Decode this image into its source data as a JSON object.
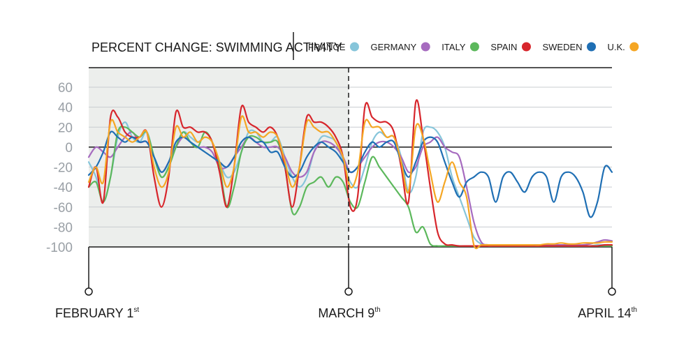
{
  "chart_data": {
    "type": "line",
    "title": "PERCENT CHANGE: SWIMMING ACTIVITY",
    "x_labels": [
      {
        "label": "FEBRUARY 1",
        "sup": "st"
      },
      {
        "label": "MARCH 9",
        "sup": "th"
      },
      {
        "label": "APRIL 14",
        "sup": "th"
      }
    ],
    "ylim": [
      -100,
      60
    ],
    "yticks": [
      "60",
      "40",
      "20",
      "0",
      "-20",
      "-40",
      "-60",
      "-80",
      "-100"
    ],
    "shaded_region": "February 1 – March 9",
    "legend_position": "top",
    "series": [
      {
        "name": "FRANCE",
        "color": "#86c5da",
        "values": [
          -15,
          -30,
          -55,
          -30,
          10,
          25,
          10,
          5,
          15,
          -10,
          -30,
          -20,
          0,
          15,
          10,
          5,
          10,
          5,
          -15,
          -30,
          -25,
          -5,
          15,
          15,
          5,
          5,
          10,
          -10,
          -30,
          -40,
          -30,
          -5,
          10,
          10,
          5,
          -15,
          -35,
          -40,
          -20,
          5,
          15,
          10,
          10,
          -10,
          -45,
          -30,
          15,
          20,
          15,
          0,
          -30,
          -50,
          -70,
          -90,
          -97,
          -99,
          -99,
          -99,
          -99,
          -99,
          -99,
          -99,
          -99,
          -99,
          -99,
          -99,
          -99,
          -99,
          -99,
          -99,
          -98,
          -98,
          -98
        ]
      },
      {
        "name": "GERMANY",
        "color": "#a66bbf",
        "values": [
          -10,
          0,
          -5,
          -10,
          0,
          10,
          15,
          5,
          5,
          -10,
          -25,
          -15,
          0,
          10,
          5,
          0,
          0,
          -5,
          -20,
          -20,
          -10,
          0,
          10,
          5,
          0,
          0,
          0,
          -10,
          -25,
          -30,
          -25,
          -5,
          5,
          5,
          0,
          -10,
          -25,
          -20,
          -10,
          0,
          5,
          5,
          0,
          -10,
          -25,
          -20,
          0,
          5,
          10,
          0,
          -5,
          -10,
          -40,
          -75,
          -95,
          -98,
          -98,
          -98,
          -98,
          -98,
          -98,
          -98,
          -98,
          -98,
          -98,
          -98,
          -98,
          -98,
          -98,
          -97,
          -95,
          -93,
          -94
        ]
      },
      {
        "name": "ITALY",
        "color": "#5cb85c",
        "values": [
          -40,
          -35,
          -55,
          -30,
          15,
          20,
          15,
          10,
          15,
          -10,
          -30,
          -20,
          0,
          15,
          5,
          0,
          15,
          5,
          -20,
          -60,
          -40,
          -5,
          10,
          10,
          5,
          5,
          5,
          -20,
          -65,
          -60,
          -40,
          -35,
          -30,
          -40,
          -30,
          -35,
          -55,
          -60,
          -35,
          -10,
          -20,
          -30,
          -40,
          -50,
          -60,
          -85,
          -80,
          -97,
          -99,
          -99,
          -99,
          -99,
          -99,
          -99,
          -99,
          -99,
          -99,
          -99,
          -99,
          -99,
          -99,
          -99,
          -99,
          -99,
          -99,
          -99,
          -99,
          -99,
          -99,
          -99,
          -99,
          -99,
          -99
        ]
      },
      {
        "name": "SPAIN",
        "color": "#d7262c",
        "values": [
          -40,
          -20,
          -55,
          30,
          30,
          15,
          10,
          10,
          15,
          -30,
          -60,
          -30,
          35,
          20,
          20,
          15,
          15,
          5,
          -25,
          -60,
          -20,
          40,
          25,
          20,
          15,
          20,
          10,
          -20,
          -60,
          -20,
          30,
          25,
          25,
          20,
          10,
          -10,
          -60,
          -50,
          40,
          30,
          25,
          25,
          15,
          -20,
          -55,
          45,
          10,
          -40,
          -85,
          -97,
          -98,
          -99,
          -99,
          -99,
          -99,
          -99,
          -99,
          -99,
          -99,
          -99,
          -99,
          -99,
          -99,
          -99,
          -99,
          -99,
          -99,
          -99,
          -99,
          -99,
          -99,
          -98,
          -98
        ]
      },
      {
        "name": "SWEDEN",
        "color": "#1f6fb4",
        "values": [
          -28,
          -20,
          -5,
          15,
          10,
          5,
          10,
          5,
          5,
          -10,
          -25,
          -15,
          5,
          10,
          5,
          0,
          -5,
          -10,
          -15,
          -20,
          -10,
          5,
          10,
          5,
          5,
          -5,
          -5,
          -20,
          -30,
          -25,
          -10,
          0,
          5,
          0,
          -5,
          -15,
          -25,
          -20,
          -5,
          5,
          0,
          5,
          5,
          -15,
          -30,
          -15,
          5,
          10,
          5,
          -15,
          -35,
          -50,
          -35,
          -30,
          -25,
          -30,
          -55,
          -30,
          -25,
          -35,
          -45,
          -30,
          -25,
          -30,
          -55,
          -30,
          -25,
          -30,
          -45,
          -70,
          -55,
          -20,
          -25
        ]
      },
      {
        "name": "U.K.",
        "color": "#f5a623",
        "values": [
          -35,
          -20,
          -35,
          25,
          15,
          10,
          5,
          10,
          15,
          -20,
          -40,
          -25,
          20,
          10,
          15,
          5,
          10,
          5,
          -15,
          -40,
          -20,
          30,
          15,
          15,
          10,
          15,
          10,
          -15,
          -40,
          -20,
          25,
          20,
          15,
          15,
          5,
          -10,
          -40,
          -25,
          25,
          20,
          20,
          10,
          10,
          -15,
          -45,
          20,
          10,
          -25,
          -55,
          -35,
          -15,
          -35,
          -50,
          -98,
          -98,
          -98,
          -98,
          -98,
          -98,
          -98,
          -98,
          -98,
          -98,
          -97,
          -97,
          -96,
          -97,
          -97,
          -96,
          -96,
          -96,
          -95,
          -95
        ]
      }
    ]
  }
}
